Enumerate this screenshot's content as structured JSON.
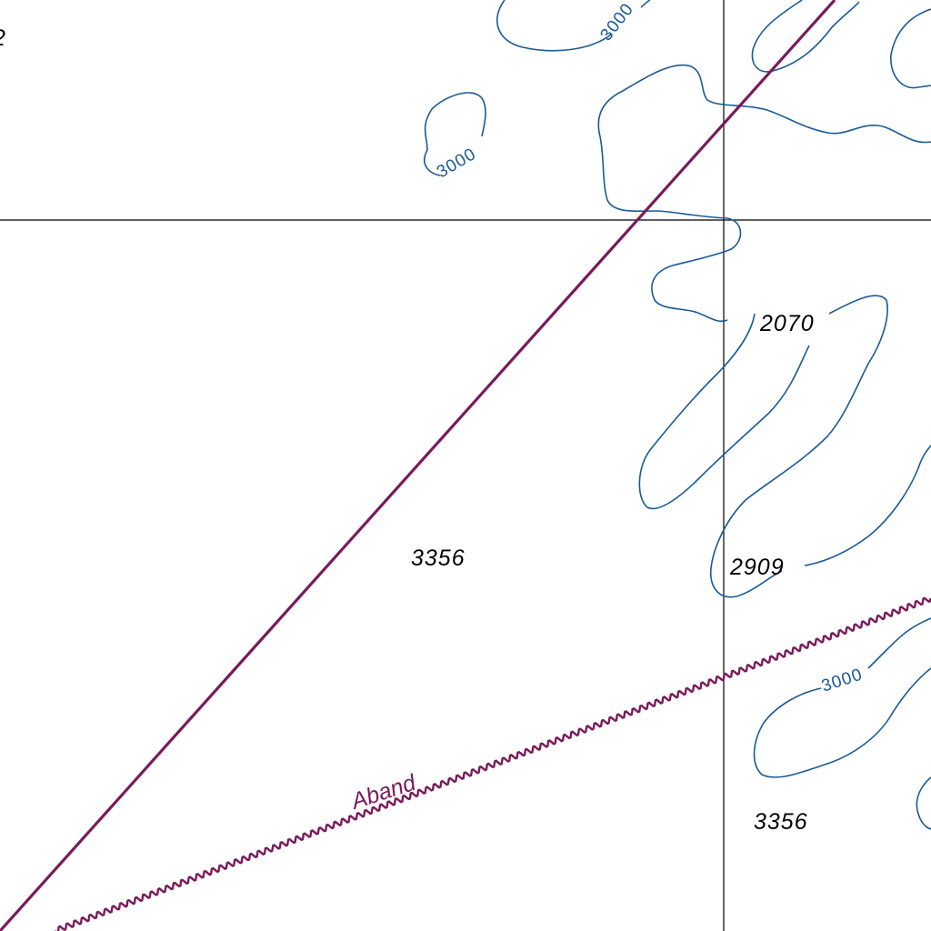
{
  "map": {
    "colors": {
      "contour": "#1a5a96",
      "cable": "#7a1a5a",
      "grid": "#000000",
      "background": "#ffffff"
    },
    "soundings": [
      {
        "text": "2070"
      },
      {
        "text": "3356"
      },
      {
        "text": "2909"
      },
      {
        "text": "3356"
      }
    ],
    "contour_labels": [
      {
        "text": "3000"
      },
      {
        "text": "3000"
      },
      {
        "text": "3000"
      }
    ],
    "cable_label": "Aband",
    "edge_fragment": "2"
  }
}
